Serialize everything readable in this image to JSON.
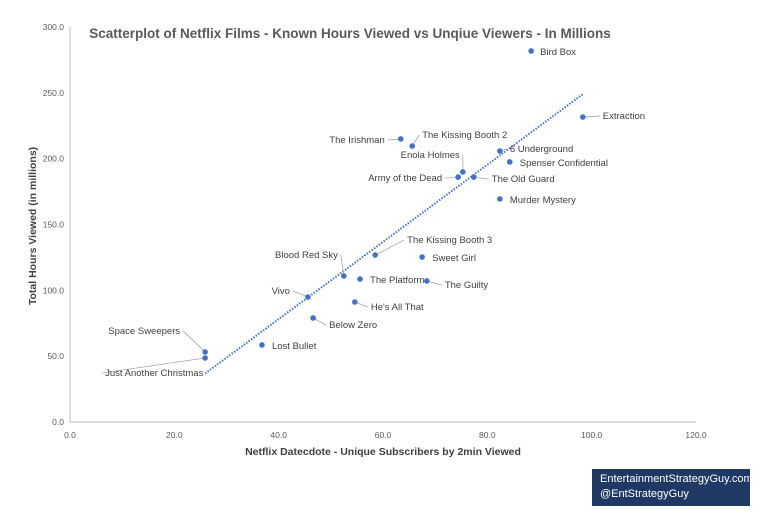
{
  "chart_data": {
    "type": "scatter",
    "title": "Scatterplot of Netflix Films - Known Hours Viewed vs Unqiue Viewers  - In Millions",
    "xlabel": "Netflix Datecdote - Unique Subscribers by 2min Viewed",
    "ylabel": "Total Hours Viewed (in millions)",
    "xlim": [
      0,
      120
    ],
    "ylim": [
      0,
      300
    ],
    "xticks": [
      "0.0",
      "20.0",
      "40.0",
      "60.0",
      "80.0",
      "100.0",
      "120.0"
    ],
    "yticks": [
      "0.0",
      "50.0",
      "100.0",
      "150.0",
      "200.0",
      "250.0",
      "300.0"
    ],
    "grid": false,
    "trendline": {
      "style": "linear dotted",
      "color": "#4472c4"
    },
    "marker_color": "#4472c4",
    "points": [
      {
        "label": "Bird Box",
        "x": 88.4,
        "y": 281.8
      },
      {
        "label": "Extraction",
        "x": 98.3,
        "y": 231.6
      },
      {
        "label": "The Irishman",
        "x": 63.4,
        "y": 215.0
      },
      {
        "label": "The Kissing Booth 2",
        "x": 65.6,
        "y": 209.6
      },
      {
        "label": "6 Underground",
        "x": 82.4,
        "y": 205.8
      },
      {
        "label": "Spenser Confidential",
        "x": 84.3,
        "y": 197.5
      },
      {
        "label": "Enola Holmes",
        "x": 75.3,
        "y": 189.9
      },
      {
        "label": "Army of the Dead",
        "x": 74.4,
        "y": 186.0
      },
      {
        "label": "The Old Guard",
        "x": 77.4,
        "y": 186.0
      },
      {
        "label": "Murder Mystery",
        "x": 82.4,
        "y": 169.4
      },
      {
        "label": "The Kissing Booth 3",
        "x": 58.5,
        "y": 126.8
      },
      {
        "label": "Sweet Girl",
        "x": 67.5,
        "y": 125.3
      },
      {
        "label": "Blood Red Sky",
        "x": 52.5,
        "y": 110.9
      },
      {
        "label": "The Platform",
        "x": 55.6,
        "y": 108.6
      },
      {
        "label": "The Guilty",
        "x": 68.4,
        "y": 107.1
      },
      {
        "label": "Vivo",
        "x": 45.6,
        "y": 94.9
      },
      {
        "label": "He's All That",
        "x": 54.6,
        "y": 91.1
      },
      {
        "label": "Below Zero",
        "x": 46.6,
        "y": 79.0
      },
      {
        "label": "Lost Bullet",
        "x": 36.8,
        "y": 58.5
      },
      {
        "label": "Space Sweepers",
        "x": 25.9,
        "y": 53.2
      },
      {
        "label": "Just Another Christmas",
        "x": 25.9,
        "y": 48.6
      }
    ]
  },
  "credit": {
    "line1": "EntertainmentStrategyGuy.com",
    "line2": "@EntStrategyGuy"
  }
}
